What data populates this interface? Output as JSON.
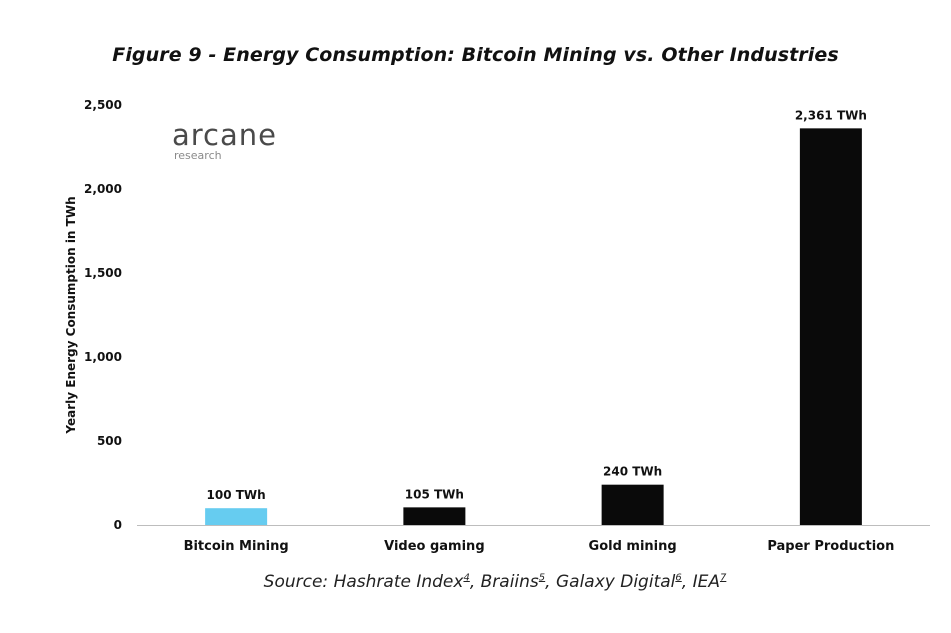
{
  "figure_title": "Figure 9 - Energy Consumption: Bitcoin Mining vs. Other Industries",
  "logo": {
    "name": "arcane",
    "sub": "research"
  },
  "source": {
    "prefix": "Source: ",
    "items": [
      {
        "text": "Hashrate Index",
        "ref": "4"
      },
      {
        "text": "Braiins",
        "ref": "5"
      },
      {
        "text": "Galaxy Digital",
        "ref": "6"
      },
      {
        "text": "IEA",
        "ref": "7"
      }
    ]
  },
  "colors": {
    "bitcoin": "#66ccf0",
    "other": "#0a0a0a",
    "axis": "#bdbdbd"
  },
  "chart_data": {
    "type": "bar",
    "title": "Figure 9 - Energy Consumption: Bitcoin Mining vs. Other Industries",
    "xlabel": "",
    "ylabel": "Yearly Energy Consumption in TWh",
    "categories": [
      "Bitcoin Mining",
      "Video gaming",
      "Gold mining",
      "Paper Production"
    ],
    "values": [
      100,
      105,
      240,
      2361
    ],
    "value_labels": [
      "100 TWh",
      "105 TWh",
      "240 TWh",
      "2,361 TWh"
    ],
    "bar_colors": [
      "#66ccf0",
      "#0a0a0a",
      "#0a0a0a",
      "#0a0a0a"
    ],
    "ylim": [
      0,
      2500
    ],
    "yticks": [
      0,
      500,
      1000,
      1500,
      2000,
      2500
    ],
    "ytick_labels": [
      "0",
      "500",
      "1,000",
      "1,500",
      "2,000",
      "2,500"
    ],
    "grid": false,
    "legend": "none"
  }
}
